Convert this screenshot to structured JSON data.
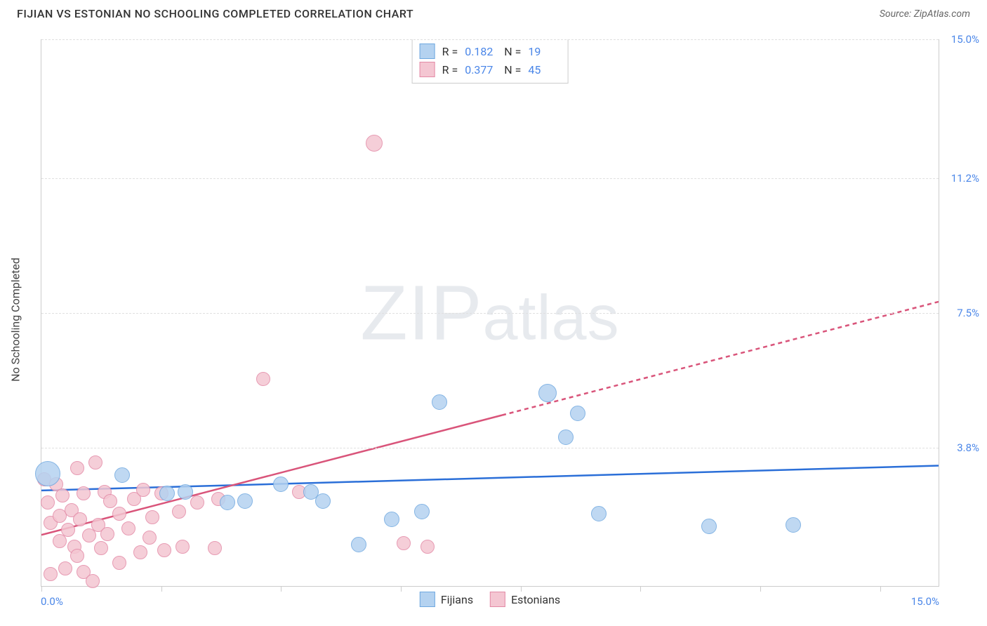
{
  "header": {
    "title": "FIJIAN VS ESTONIAN NO SCHOOLING COMPLETED CORRELATION CHART",
    "source": "Source: ZipAtlas.com"
  },
  "watermark": {
    "bold": "ZIP",
    "rest": "atlas"
  },
  "axes": {
    "y_title": "No Schooling Completed",
    "xlim": [
      0,
      15
    ],
    "ylim": [
      0,
      15
    ],
    "x_range_labels": {
      "min": "0.0%",
      "max": "15.0%"
    },
    "y_ticks": [
      {
        "value": 3.8,
        "label": "3.8%"
      },
      {
        "value": 7.5,
        "label": "7.5%"
      },
      {
        "value": 11.2,
        "label": "11.2%"
      },
      {
        "value": 15.0,
        "label": "15.0%"
      }
    ],
    "x_tick_values": [
      0,
      2,
      4,
      6,
      8,
      10,
      12,
      14
    ],
    "grid_color": "#e0e0e0",
    "axis_color": "#cccccc"
  },
  "series": {
    "fijians": {
      "label": "Fijians",
      "fill": "#b4d2f0",
      "stroke": "#6fa8e0",
      "line_color": "#2b6fd8",
      "r": 0.182,
      "n": 19,
      "marker_radius": 11,
      "trend": {
        "y_at_xmin": 2.62,
        "y_at_xmax": 3.3,
        "solid_until_x": 15
      },
      "points": [
        {
          "x": 0.1,
          "y": 3.1,
          "r": 18
        },
        {
          "x": 1.35,
          "y": 3.05
        },
        {
          "x": 2.1,
          "y": 2.55
        },
        {
          "x": 2.4,
          "y": 2.6
        },
        {
          "x": 3.4,
          "y": 2.35
        },
        {
          "x": 3.1,
          "y": 2.3
        },
        {
          "x": 4.0,
          "y": 2.8
        },
        {
          "x": 4.5,
          "y": 2.6
        },
        {
          "x": 4.7,
          "y": 2.35
        },
        {
          "x": 5.3,
          "y": 1.15
        },
        {
          "x": 5.85,
          "y": 1.85
        },
        {
          "x": 6.35,
          "y": 2.05
        },
        {
          "x": 6.65,
          "y": 5.05
        },
        {
          "x": 8.45,
          "y": 5.3,
          "r": 13
        },
        {
          "x": 8.95,
          "y": 4.75
        },
        {
          "x": 8.75,
          "y": 4.1
        },
        {
          "x": 9.3,
          "y": 2.0
        },
        {
          "x": 11.15,
          "y": 1.65
        },
        {
          "x": 12.55,
          "y": 1.7
        }
      ]
    },
    "estonians": {
      "label": "Estonians",
      "fill": "#f4c6d2",
      "stroke": "#e38aa6",
      "line_color": "#d9547a",
      "r": 0.377,
      "n": 45,
      "marker_radius": 10,
      "trend": {
        "y_at_xmin": 1.4,
        "y_at_xmax": 7.8,
        "solid_until_x": 7.7
      },
      "points": [
        {
          "x": 0.05,
          "y": 2.95
        },
        {
          "x": 0.1,
          "y": 2.3
        },
        {
          "x": 0.15,
          "y": 1.75
        },
        {
          "x": 0.15,
          "y": 0.35
        },
        {
          "x": 0.25,
          "y": 2.8
        },
        {
          "x": 0.3,
          "y": 1.95
        },
        {
          "x": 0.3,
          "y": 1.25
        },
        {
          "x": 0.35,
          "y": 2.5
        },
        {
          "x": 0.4,
          "y": 0.5
        },
        {
          "x": 0.45,
          "y": 1.55
        },
        {
          "x": 0.5,
          "y": 2.1
        },
        {
          "x": 0.55,
          "y": 1.1
        },
        {
          "x": 0.6,
          "y": 3.25
        },
        {
          "x": 0.6,
          "y": 0.85
        },
        {
          "x": 0.65,
          "y": 1.85
        },
        {
          "x": 0.7,
          "y": 2.55
        },
        {
          "x": 0.7,
          "y": 0.4
        },
        {
          "x": 0.8,
          "y": 1.4
        },
        {
          "x": 0.85,
          "y": 0.15
        },
        {
          "x": 0.9,
          "y": 3.4
        },
        {
          "x": 0.95,
          "y": 1.7
        },
        {
          "x": 1.0,
          "y": 1.05
        },
        {
          "x": 1.05,
          "y": 2.6
        },
        {
          "x": 1.1,
          "y": 1.45
        },
        {
          "x": 1.15,
          "y": 2.35
        },
        {
          "x": 1.3,
          "y": 2.0
        },
        {
          "x": 1.3,
          "y": 0.65
        },
        {
          "x": 1.45,
          "y": 1.6
        },
        {
          "x": 1.55,
          "y": 2.4
        },
        {
          "x": 1.65,
          "y": 0.95
        },
        {
          "x": 1.7,
          "y": 2.65
        },
        {
          "x": 1.8,
          "y": 1.35
        },
        {
          "x": 1.85,
          "y": 1.9
        },
        {
          "x": 2.0,
          "y": 2.55
        },
        {
          "x": 2.05,
          "y": 1.0
        },
        {
          "x": 2.3,
          "y": 2.05
        },
        {
          "x": 2.35,
          "y": 1.1
        },
        {
          "x": 2.6,
          "y": 2.3
        },
        {
          "x": 2.9,
          "y": 1.05
        },
        {
          "x": 2.95,
          "y": 2.4
        },
        {
          "x": 3.7,
          "y": 5.7
        },
        {
          "x": 4.3,
          "y": 2.6
        },
        {
          "x": 5.55,
          "y": 12.15,
          "r": 12
        },
        {
          "x": 6.05,
          "y": 1.2
        },
        {
          "x": 6.45,
          "y": 1.1
        }
      ]
    }
  },
  "stats_box": {
    "r_label": "R =",
    "n_label": "N ="
  },
  "colors": {
    "value_text": "#4a86e8",
    "label_text": "#333333",
    "title_text": "#333333"
  }
}
